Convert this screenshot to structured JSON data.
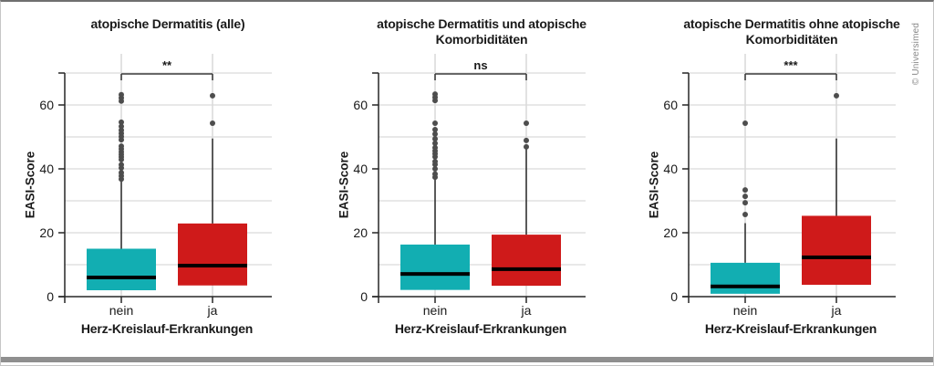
{
  "page": {
    "credit": "© Universimed"
  },
  "colors": {
    "nein_box": "#12aeb2",
    "ja_box": "#cf1a1a",
    "median": "#000000",
    "outlier": "#4d4d4d",
    "grid": "#dadada",
    "cat_line": "#cfcfcf",
    "axis_line": "#262626",
    "bracket": "#3c3c3c",
    "text": "#1a1a1a"
  },
  "axis": {
    "ylabel": "EASI-Score",
    "xlabel": "Herz-Kreislauf-Erkrankungen",
    "yticks": [
      0,
      20,
      40,
      60
    ],
    "ymax": 70,
    "categories": [
      "nein",
      "ja"
    ]
  },
  "chart_data": [
    {
      "type": "boxplot",
      "title": "atopische Dermatitis (alle)",
      "significance": "**",
      "ylabel": "EASI-Score",
      "xlabel": "Herz-Kreislauf-Erkrankungen",
      "ylim": [
        0,
        70
      ],
      "yticks": [
        0,
        20,
        40,
        60
      ],
      "categories": [
        "nein",
        "ja"
      ],
      "series": [
        {
          "name": "nein",
          "color_key": "nein_box",
          "q1": 2,
          "median": 6,
          "q3": 15,
          "whisker_high": 36,
          "outliers": [
            36.8,
            37.8,
            38.8,
            40.3,
            41.3,
            42.9,
            43.7,
            44.5,
            45.3,
            46.2,
            47.1,
            49.1,
            50.1,
            51.1,
            52.1,
            53.3,
            54.6,
            61.2,
            62.2,
            63.2
          ]
        },
        {
          "name": "ja",
          "color_key": "ja_box",
          "q1": 3.5,
          "median": 9.7,
          "q3": 22.9,
          "whisker_high": 49.5,
          "outliers": [
            54.3,
            62.9
          ]
        }
      ]
    },
    {
      "type": "boxplot",
      "title": "atopische Dermatitis und atopische\nKomorbiditäten",
      "significance": "ns",
      "ylabel": "EASI-Score",
      "xlabel": "Herz-Kreislauf-Erkrankungen",
      "ylim": [
        0,
        70
      ],
      "yticks": [
        0,
        20,
        40,
        60
      ],
      "categories": [
        "nein",
        "ja"
      ],
      "series": [
        {
          "name": "nein",
          "color_key": "nein_box",
          "q1": 2.1,
          "median": 7.1,
          "q3": 16.3,
          "whisker_high": 36.8,
          "outliers": [
            37.4,
            38.4,
            40,
            41.4,
            42.3,
            43.8,
            44.7,
            45.6,
            46.6,
            48,
            49.4,
            50.9,
            52.3,
            54.3,
            61.4,
            62.4,
            63.4
          ]
        },
        {
          "name": "ja",
          "color_key": "ja_box",
          "q1": 3.4,
          "median": 8.6,
          "q3": 19.4,
          "whisker_high": 46.5,
          "outliers": [
            46.9,
            48.9,
            54.3
          ]
        }
      ]
    },
    {
      "type": "boxplot",
      "title": "atopische Dermatitis ohne atopische\nKomorbiditäten",
      "significance": "***",
      "ylabel": "EASI-Score",
      "xlabel": "Herz-Kreislauf-Erkrankungen",
      "ylim": [
        0,
        70
      ],
      "yticks": [
        0,
        20,
        40,
        60
      ],
      "categories": [
        "nein",
        "ja"
      ],
      "series": [
        {
          "name": "nein",
          "color_key": "nein_box",
          "q1": 0.9,
          "median": 3.2,
          "q3": 10.6,
          "whisker_high": 23,
          "outliers": [
            25.7,
            29.4,
            31.4,
            33.4,
            54.3
          ]
        },
        {
          "name": "ja",
          "color_key": "ja_box",
          "q1": 3.7,
          "median": 12.3,
          "q3": 25.3,
          "whisker_high": 49.5,
          "outliers": [
            62.9
          ]
        }
      ]
    }
  ]
}
